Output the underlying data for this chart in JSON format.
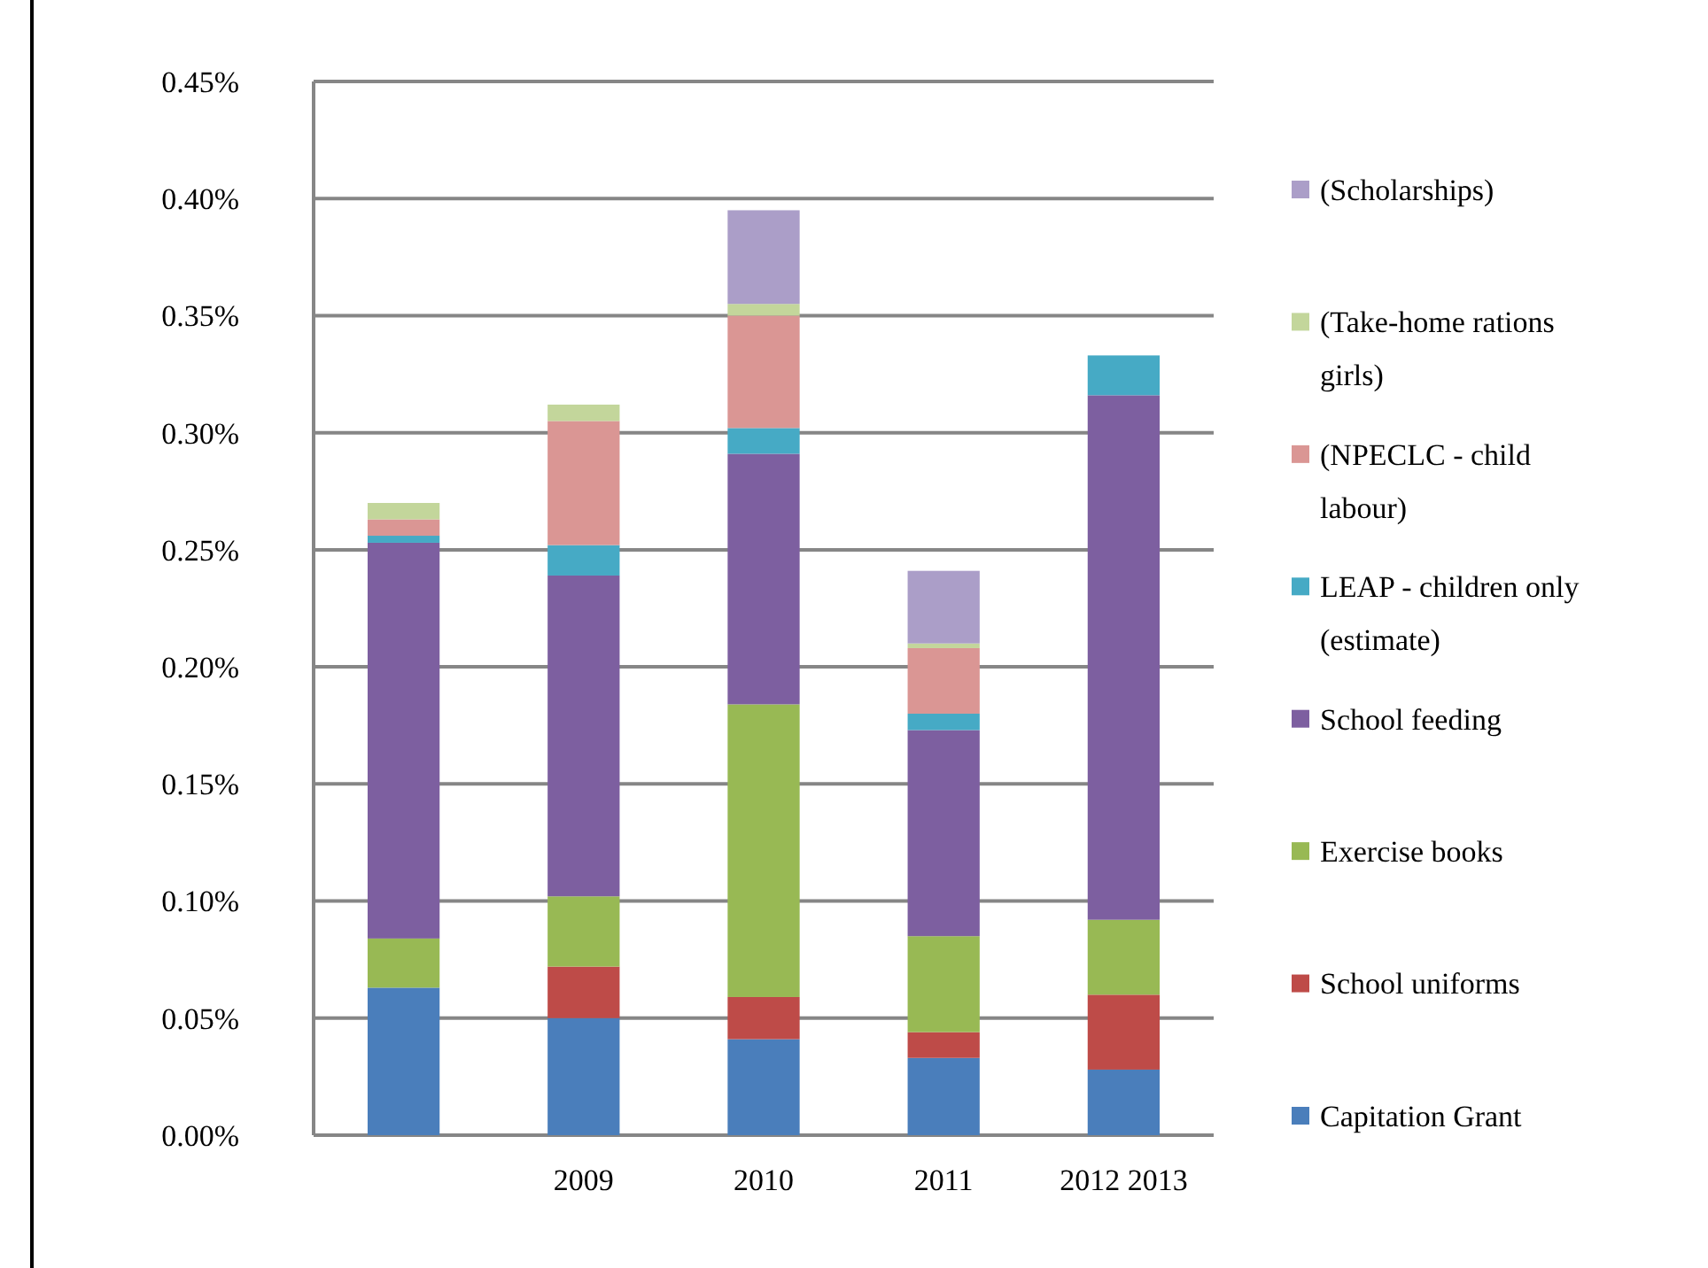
{
  "chart_data": {
    "type": "bar",
    "stacked": true,
    "categories": [
      null,
      "2009",
      "2010",
      "2011",
      "2012 2013"
    ],
    "series": [
      {
        "name": "Capitation Grant",
        "color": "#4a7ebb",
        "values": [
          0.063,
          0.05,
          0.041,
          0.033,
          0.028
        ]
      },
      {
        "name": "School uniforms",
        "color": "#be4b48",
        "values": [
          null,
          0.022,
          0.018,
          0.011,
          0.032
        ]
      },
      {
        "name": "Exercise books",
        "color": "#98b954",
        "values": [
          0.021,
          0.03,
          0.125,
          0.041,
          0.032
        ]
      },
      {
        "name": "School feeding",
        "color": "#7d5fa0",
        "values": [
          0.169,
          0.137,
          0.107,
          0.088,
          0.224
        ]
      },
      {
        "name": "LEAP - children only (estimate)",
        "color": "#46aac5",
        "values": [
          0.003,
          0.013,
          0.011,
          0.007,
          0.017
        ]
      },
      {
        "name": "(NPECLC - child labour)",
        "color": "#da9694",
        "values": [
          0.007,
          0.053,
          0.048,
          0.028,
          null
        ]
      },
      {
        "name": "(Take-home rations girls)",
        "color": "#c3d69b",
        "values": [
          0.007,
          0.007,
          0.005,
          0.002,
          null
        ]
      },
      {
        "name": "(Scholarships)",
        "color": "#ab9ec8",
        "values": [
          null,
          null,
          0.04,
          0.031,
          null
        ]
      }
    ],
    "ylim": [
      0,
      0.45
    ],
    "yticks": [
      {
        "value": 0,
        "label": "0.00%"
      },
      {
        "value": 0.05,
        "label": "0.05%"
      },
      {
        "value": 0.1,
        "label": "0.10%"
      },
      {
        "value": 0.15,
        "label": "0.15%"
      },
      {
        "value": 0.2,
        "label": "0.20%"
      },
      {
        "value": 0.25,
        "label": "0.25%"
      },
      {
        "value": 0.3,
        "label": "0.30%"
      },
      {
        "value": 0.35,
        "label": "0.35%"
      },
      {
        "value": 0.4,
        "label": "0.40%"
      },
      {
        "value": 0.45,
        "label": "0.45%"
      }
    ],
    "grid": "y",
    "legend": "right"
  }
}
